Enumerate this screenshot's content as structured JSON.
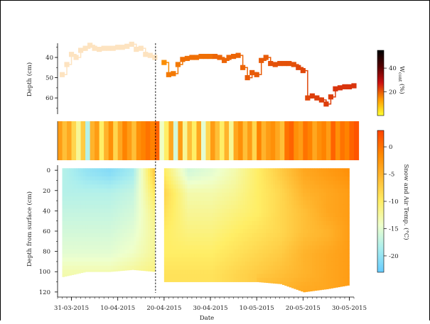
{
  "chart_data": [
    {
      "type": "scatter",
      "ylabel": "Depth (cm)",
      "y_ticks": [
        "40",
        "50",
        "60"
      ],
      "ylim": [
        68,
        33
      ],
      "colorbar": {
        "label_main": "W",
        "label_sub": "cont",
        "label_unit": " (%)",
        "ticks": [
          "20",
          "40"
        ],
        "range": [
          0,
          55
        ],
        "colors": [
          "#ffff33",
          "#ff9900",
          "#cc1111",
          "#550000",
          "#000000"
        ]
      },
      "series": [
        {
          "x": [
            "2015-03-29",
            "2015-03-30",
            "2015-03-31",
            "2015-04-01",
            "2015-04-02",
            "2015-04-03",
            "2015-04-04",
            "2015-04-05",
            "2015-04-06",
            "2015-04-07",
            "2015-04-08",
            "2015-04-09",
            "2015-04-10",
            "2015-04-11",
            "2015-04-12",
            "2015-04-13",
            "2015-04-14",
            "2015-04-15",
            "2015-04-16",
            "2015-04-17",
            "2015-04-18"
          ],
          "y": [
            48.5,
            43.5,
            38.5,
            40.0,
            36.5,
            35.5,
            34.0,
            35.5,
            36.0,
            35.5,
            35.5,
            35.5,
            35.0,
            35.0,
            34.5,
            33.5,
            36.0,
            35.5,
            38.5,
            39.0,
            40.0
          ],
          "w": [
            0,
            0,
            0,
            0,
            0,
            0,
            0,
            0,
            0,
            0,
            0,
            0,
            0,
            0,
            0,
            0,
            0,
            0,
            0,
            0,
            0
          ]
        },
        {
          "x": [
            "2015-04-20",
            "2015-04-21",
            "2015-04-22",
            "2015-04-23",
            "2015-04-24",
            "2015-04-25",
            "2015-04-26",
            "2015-04-27",
            "2015-04-28",
            "2015-04-29",
            "2015-04-30",
            "2015-05-01",
            "2015-05-02",
            "2015-05-03",
            "2015-05-04",
            "2015-05-05",
            "2015-05-06",
            "2015-05-07",
            "2015-05-08",
            "2015-05-09",
            "2015-05-10",
            "2015-05-11",
            "2015-05-12",
            "2015-05-13",
            "2015-05-14",
            "2015-05-15",
            "2015-05-16",
            "2015-05-17",
            "2015-05-18",
            "2015-05-19",
            "2015-05-20",
            "2015-05-21",
            "2015-05-22",
            "2015-05-23",
            "2015-05-24",
            "2015-05-25",
            "2015-05-26",
            "2015-05-27",
            "2015-05-28",
            "2015-05-29",
            "2015-05-30",
            "2015-05-31"
          ],
          "y": [
            42.5,
            48.5,
            48.0,
            43.5,
            41.0,
            40.5,
            40.0,
            40.0,
            39.5,
            39.5,
            39.5,
            39.5,
            40.0,
            41.5,
            40.0,
            39.5,
            39.0,
            45.0,
            50.0,
            47.5,
            48.5,
            41.5,
            40.0,
            43.0,
            43.5,
            43.0,
            43.0,
            43.0,
            43.5,
            45.0,
            46.5,
            60.0,
            59.0,
            60.0,
            61.0,
            63.0,
            59.5,
            55.5,
            55.0,
            54.5,
            54.5,
            54.0
          ],
          "w": [
            15,
            17,
            17,
            17,
            18,
            18,
            18,
            18,
            18,
            18,
            18,
            19,
            19,
            19,
            19,
            19,
            19,
            19,
            20,
            20,
            20,
            20,
            20,
            21,
            21,
            21,
            21,
            21,
            21,
            22,
            22,
            22,
            23,
            23,
            23,
            23,
            23,
            24,
            24,
            24,
            24,
            24
          ]
        }
      ]
    },
    {
      "type": "heatmap",
      "xlabel": "Date",
      "ylabel": "Depth from surface (cm)",
      "x_ticks": [
        "31-03-2015",
        "10-04-2015",
        "20-04-2015",
        "30-04-2015",
        "10-05-2015",
        "20-05-2015",
        "30-05-2015"
      ],
      "y_ticks": [
        "0",
        "20",
        "40",
        "60",
        "80",
        "100",
        "120"
      ],
      "xlim": [
        "2015-03-28",
        "2015-05-31"
      ],
      "ylim": [
        125,
        -5
      ],
      "marker_date": "2015-04-18",
      "colorbar": {
        "label": "Snow and Air Temp. (°C)",
        "ticks": [
          "-20",
          "-15",
          "-10",
          "-5",
          "0"
        ],
        "range": [
          -23,
          3
        ],
        "colors": [
          "#66ccff",
          "#aaeeee",
          "#eeffcc",
          "#ffee66",
          "#ffbb33",
          "#ff8800",
          "#ff4400"
        ]
      },
      "air_temperature": {
        "dates": [
          "2015-03-28",
          "2015-03-29",
          "2015-03-30",
          "2015-03-31",
          "2015-04-01",
          "2015-04-02",
          "2015-04-03",
          "2015-04-04",
          "2015-04-05",
          "2015-04-06",
          "2015-04-07",
          "2015-04-08",
          "2015-04-09",
          "2015-04-10",
          "2015-04-11",
          "2015-04-12",
          "2015-04-13",
          "2015-04-14",
          "2015-04-15",
          "2015-04-16",
          "2015-04-17",
          "2015-04-18",
          "2015-04-19",
          "2015-04-20",
          "2015-04-21",
          "2015-04-22",
          "2015-04-23",
          "2015-04-24",
          "2015-04-25",
          "2015-04-26",
          "2015-04-27",
          "2015-04-28",
          "2015-04-29",
          "2015-04-30",
          "2015-05-01",
          "2015-05-02",
          "2015-05-03",
          "2015-05-04",
          "2015-05-05",
          "2015-05-06",
          "2015-05-07",
          "2015-05-08",
          "2015-05-09",
          "2015-05-10",
          "2015-05-11",
          "2015-05-12",
          "2015-05-13",
          "2015-05-14",
          "2015-05-15",
          "2015-05-16",
          "2015-05-17",
          "2015-05-18",
          "2015-05-19",
          "2015-05-20",
          "2015-05-21",
          "2015-05-22",
          "2015-05-23",
          "2015-05-24",
          "2015-05-25",
          "2015-05-26",
          "2015-05-27",
          "2015-05-28",
          "2015-05-29",
          "2015-05-30",
          "2015-05-31"
        ],
        "values": [
          -3,
          -6,
          -4,
          -8,
          -12,
          -7,
          -18,
          -5,
          -3,
          -10,
          -5,
          -2,
          -8,
          -4,
          -1,
          -3,
          -6,
          -2,
          -1,
          0,
          -1,
          1,
          -14,
          -10,
          -4,
          -16,
          -3,
          -12,
          -6,
          -10,
          -4,
          -15,
          -8,
          -3,
          -6,
          -10,
          -5,
          -12,
          -4,
          -2,
          -6,
          -3,
          -8,
          -1,
          -5,
          -3,
          -2,
          -4,
          -6,
          0,
          1,
          -2,
          -3,
          0,
          -1,
          -4,
          -2,
          -1,
          -3,
          1,
          -2,
          0,
          -1,
          1,
          2
        ]
      },
      "snow_temperature": {
        "dates": [
          "2015-03-29",
          "2015-04-03",
          "2015-04-08",
          "2015-04-13",
          "2015-04-18",
          "2015-04-20",
          "2015-04-25",
          "2015-04-30",
          "2015-05-05",
          "2015-05-10",
          "2015-05-15",
          "2015-05-20",
          "2015-05-25",
          "2015-05-30"
        ],
        "depths": [
          0,
          20,
          40,
          60,
          80,
          100,
          120
        ],
        "values": [
          [
            -18,
            -18,
            -17,
            -16,
            -15,
            -13,
            null
          ],
          [
            -20,
            -18,
            -17,
            -16,
            -15,
            -13,
            null
          ],
          [
            -21,
            -18,
            -17,
            -16,
            -15,
            -13,
            null
          ],
          [
            -19,
            -17,
            -16,
            -15,
            -14,
            -12,
            null
          ],
          [
            -6,
            -9,
            -11,
            -12,
            -12,
            -11,
            null
          ],
          [
            -10,
            -8,
            -9,
            -10,
            -10,
            -9,
            null
          ],
          [
            -16,
            -13,
            -12,
            -11,
            -10,
            -9,
            null
          ],
          [
            -15,
            -13,
            -12,
            -11,
            -10,
            -9,
            null
          ],
          [
            -13,
            -12,
            -11,
            -10,
            -9,
            -8,
            null
          ],
          [
            -10,
            -10,
            -10,
            -9,
            -8,
            -7,
            null
          ],
          [
            -7,
            -8,
            -8,
            -8,
            -7,
            -6,
            -5
          ],
          [
            -4,
            -5,
            -6,
            -6,
            -5,
            -5,
            -4
          ],
          [
            -3,
            -4,
            -4,
            -5,
            -4,
            -4,
            -4
          ],
          [
            -2,
            -3,
            -3,
            -3,
            -3,
            -3,
            -3
          ]
        ],
        "snow_bottom_cm": [
          105,
          100,
          100,
          98,
          100,
          110,
          110,
          110,
          110,
          110,
          112,
          120,
          117,
          113
        ]
      }
    }
  ]
}
